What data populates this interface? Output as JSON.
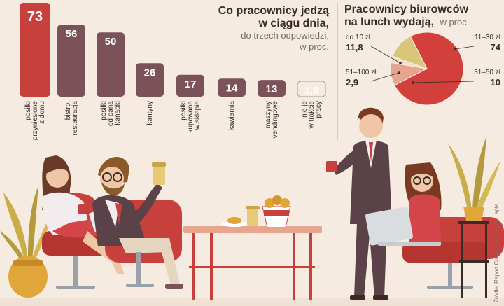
{
  "colors": {
    "background": "#f6ebe0",
    "bar_main": "#c8403c",
    "bar_other": "#7a5258",
    "divider": "#b9a8a0",
    "pie_large": "#d3403c",
    "pie_small": "#d8c67a",
    "pie_mid": "#e7a48e",
    "pie_tiny": "#f2e0c8"
  },
  "bar_chart": {
    "title_line1": "Co pracownicy jedzą",
    "title_line2": "w ciągu dnia,",
    "subtitle_line1": "do trzech odpowiedzi,",
    "subtitle_line2": "w proc."
  },
  "pie_chart": {
    "title_line1": "Pracownicy biurowców",
    "title_line2": "na lunch wydają,",
    "title_unit": "w proc."
  },
  "source": "Źródło: Raport Colliers, API, oprac. apta",
  "chart_data": [
    {
      "type": "bar",
      "categories": [
        [
          "posiłki",
          "przyniesione",
          "z domu"
        ],
        [
          "bistro,",
          "restauracja"
        ],
        [
          "posiłki",
          "od pana",
          "kanapki"
        ],
        [
          "kantyny"
        ],
        [
          "posiłki",
          "kupowane",
          "w sklepie"
        ],
        [
          "kawiarnia"
        ],
        [
          "maszyny",
          "vendingowe"
        ],
        [
          "nie je",
          "w trakcie",
          "pracy"
        ]
      ],
      "values": [
        73,
        56,
        50,
        26,
        17,
        14,
        13,
        1.8
      ],
      "value_labels": [
        "73",
        "56",
        "50",
        "26",
        "17",
        "14",
        "13",
        "1,8"
      ],
      "title": "Co pracownicy jedzą w ciągu dnia,",
      "subtitle": "do trzech odpowiedzi, w proc.",
      "ylim": [
        0,
        80
      ]
    },
    {
      "type": "pie",
      "title": "Pracownicy biurowców na lunch wydają, w proc.",
      "labels": [
        "11–30 zł",
        "31–50 zł",
        "51–100 zł",
        "do 10 zł"
      ],
      "values": [
        74,
        10,
        2.9,
        11.8
      ],
      "value_labels": [
        "74",
        "10",
        "2,9",
        "11,8"
      ]
    }
  ]
}
